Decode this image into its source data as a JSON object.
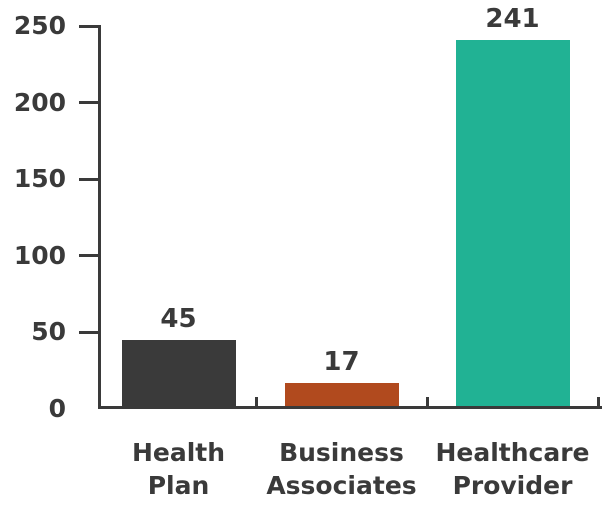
{
  "chart_data": {
    "type": "bar",
    "title": "",
    "categories": [
      "Health Plan",
      "Business Associates",
      "Healthcare Provider"
    ],
    "category_lines": [
      [
        "Health",
        "Plan"
      ],
      [
        "Business",
        "Associates"
      ],
      [
        "Healthcare",
        "Provider"
      ]
    ],
    "values": [
      45,
      17,
      241
    ],
    "data_labels": [
      "45",
      "17",
      "241"
    ],
    "bar_colors": [
      "#3a3a3a",
      "#b14a1e",
      "#21b294"
    ],
    "yticks": [
      0,
      50,
      100,
      150,
      200,
      250
    ],
    "ytick_labels": [
      "0",
      "50",
      "100",
      "150",
      "200",
      "250"
    ],
    "ylim": [
      0,
      250
    ],
    "xlabel": "",
    "ylabel": "",
    "grid": false,
    "legend": false,
    "axis_color": "#3a3a3a",
    "text_color": "#3a3a3a",
    "background_color": "#ffffff"
  }
}
